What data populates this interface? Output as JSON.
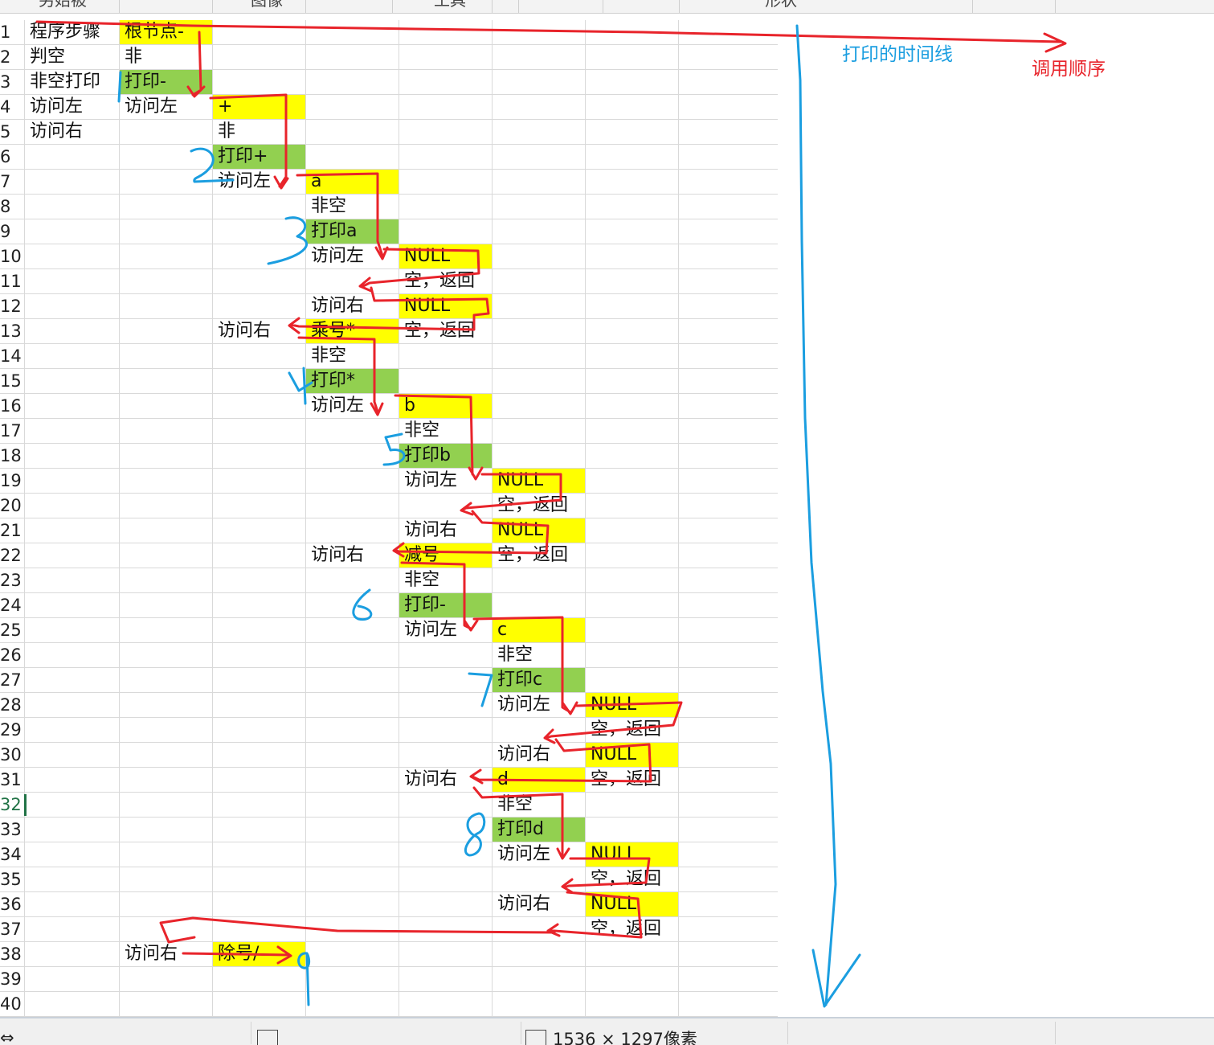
{
  "column_headers": [
    "另始被",
    "图像",
    "工具",
    "形状"
  ],
  "row_numbers": [
    "1",
    "2",
    "3",
    "4",
    "5",
    "6",
    "7",
    "8",
    "9",
    "10",
    "11",
    "12",
    "13",
    "14",
    "15",
    "16",
    "17",
    "18",
    "19",
    "20",
    "21",
    "22",
    "23",
    "24",
    "25",
    "26",
    "27",
    "28",
    "29",
    "30",
    "31",
    "32",
    "33",
    "34",
    "35",
    "36",
    "37",
    "38",
    "39",
    "40"
  ],
  "active_row": "32",
  "cells": [
    {
      "row": 1,
      "col": 0,
      "text": "程序步骤",
      "fill": ""
    },
    {
      "row": 1,
      "col": 1,
      "text": "根节点-",
      "fill": "yellow"
    },
    {
      "row": 2,
      "col": 0,
      "text": "判空",
      "fill": ""
    },
    {
      "row": 2,
      "col": 1,
      "text": "非",
      "fill": ""
    },
    {
      "row": 3,
      "col": 0,
      "text": "非空打印",
      "fill": ""
    },
    {
      "row": 3,
      "col": 1,
      "text": "打印-",
      "fill": "green"
    },
    {
      "row": 4,
      "col": 0,
      "text": "访问左",
      "fill": ""
    },
    {
      "row": 4,
      "col": 1,
      "text": "访问左",
      "fill": ""
    },
    {
      "row": 4,
      "col": 2,
      "text": "+",
      "fill": "yellow"
    },
    {
      "row": 5,
      "col": 0,
      "text": "访问右",
      "fill": ""
    },
    {
      "row": 5,
      "col": 2,
      "text": "非",
      "fill": ""
    },
    {
      "row": 6,
      "col": 2,
      "text": "打印+",
      "fill": "green"
    },
    {
      "row": 7,
      "col": 2,
      "text": "访问左",
      "fill": ""
    },
    {
      "row": 7,
      "col": 3,
      "text": "a",
      "fill": "yellow"
    },
    {
      "row": 8,
      "col": 3,
      "text": "非空",
      "fill": ""
    },
    {
      "row": 9,
      "col": 3,
      "text": "打印a",
      "fill": "green"
    },
    {
      "row": 10,
      "col": 3,
      "text": "访问左",
      "fill": ""
    },
    {
      "row": 10,
      "col": 4,
      "text": "NULL",
      "fill": "yellow"
    },
    {
      "row": 11,
      "col": 4,
      "text": "空，返回",
      "fill": ""
    },
    {
      "row": 12,
      "col": 3,
      "text": "访问右",
      "fill": ""
    },
    {
      "row": 12,
      "col": 4,
      "text": "NULL",
      "fill": "yellow"
    },
    {
      "row": 13,
      "col": 2,
      "text": "访问右",
      "fill": ""
    },
    {
      "row": 13,
      "col": 3,
      "text": "乘号*",
      "fill": "yellow"
    },
    {
      "row": 13,
      "col": 4,
      "text": "空，返回",
      "fill": ""
    },
    {
      "row": 14,
      "col": 3,
      "text": "非空",
      "fill": ""
    },
    {
      "row": 15,
      "col": 3,
      "text": "打印*",
      "fill": "green"
    },
    {
      "row": 16,
      "col": 3,
      "text": "访问左",
      "fill": ""
    },
    {
      "row": 16,
      "col": 4,
      "text": "b",
      "fill": "yellow"
    },
    {
      "row": 17,
      "col": 4,
      "text": "非空",
      "fill": ""
    },
    {
      "row": 18,
      "col": 4,
      "text": "打印b",
      "fill": "green"
    },
    {
      "row": 19,
      "col": 4,
      "text": "访问左",
      "fill": ""
    },
    {
      "row": 19,
      "col": 5,
      "text": "NULL",
      "fill": "yellow"
    },
    {
      "row": 20,
      "col": 5,
      "text": "空，返回",
      "fill": ""
    },
    {
      "row": 21,
      "col": 4,
      "text": "访问右",
      "fill": ""
    },
    {
      "row": 21,
      "col": 5,
      "text": "NULL",
      "fill": "yellow"
    },
    {
      "row": 22,
      "col": 3,
      "text": "访问右",
      "fill": ""
    },
    {
      "row": 22,
      "col": 4,
      "text": "减号",
      "fill": "yellow"
    },
    {
      "row": 22,
      "col": 5,
      "text": "空，返回",
      "fill": ""
    },
    {
      "row": 23,
      "col": 4,
      "text": "非空",
      "fill": ""
    },
    {
      "row": 24,
      "col": 4,
      "text": "打印-",
      "fill": "green"
    },
    {
      "row": 25,
      "col": 4,
      "text": "访问左",
      "fill": ""
    },
    {
      "row": 25,
      "col": 5,
      "text": "c",
      "fill": "yellow"
    },
    {
      "row": 26,
      "col": 5,
      "text": "非空",
      "fill": ""
    },
    {
      "row": 27,
      "col": 5,
      "text": "打印c",
      "fill": "green"
    },
    {
      "row": 28,
      "col": 5,
      "text": "访问左",
      "fill": ""
    },
    {
      "row": 28,
      "col": 6,
      "text": "NULL",
      "fill": "yellow"
    },
    {
      "row": 29,
      "col": 6,
      "text": "空，返回",
      "fill": ""
    },
    {
      "row": 30,
      "col": 5,
      "text": "访问右",
      "fill": ""
    },
    {
      "row": 30,
      "col": 6,
      "text": "NULL",
      "fill": "yellow"
    },
    {
      "row": 31,
      "col": 4,
      "text": "访问右",
      "fill": ""
    },
    {
      "row": 31,
      "col": 5,
      "text": "d",
      "fill": "yellow"
    },
    {
      "row": 31,
      "col": 6,
      "text": "空，返回",
      "fill": ""
    },
    {
      "row": 32,
      "col": 5,
      "text": "非空",
      "fill": ""
    },
    {
      "row": 33,
      "col": 5,
      "text": "打印d",
      "fill": "green"
    },
    {
      "row": 34,
      "col": 5,
      "text": "访问左",
      "fill": ""
    },
    {
      "row": 34,
      "col": 6,
      "text": "NULL",
      "fill": "yellow"
    },
    {
      "row": 35,
      "col": 6,
      "text": "空，返回",
      "fill": ""
    },
    {
      "row": 36,
      "col": 5,
      "text": "访问右",
      "fill": ""
    },
    {
      "row": 36,
      "col": 6,
      "text": "NULL",
      "fill": "yellow"
    },
    {
      "row": 37,
      "col": 6,
      "text": "空，返回",
      "fill": ""
    },
    {
      "row": 38,
      "col": 1,
      "text": "访问右",
      "fill": ""
    },
    {
      "row": 38,
      "col": 2,
      "text": "除号/",
      "fill": "yellow"
    }
  ],
  "annotations": {
    "timeline_label": "打印的时间线",
    "call_order_label": "调用顺序",
    "print_order_numbers": [
      "1",
      "2",
      "3",
      "4",
      "5",
      "6",
      "7",
      "8",
      "9"
    ],
    "timeline_color": "#1b9ee0",
    "call_color": "#e8242b"
  },
  "status_bar": {
    "dimensions": "1536 × 1297像素"
  },
  "colors": {
    "yellow_fill": "#ffff00",
    "green_fill": "#92d050",
    "grid_line": "#d9d9d9",
    "active_row_indicator": "#217346"
  }
}
